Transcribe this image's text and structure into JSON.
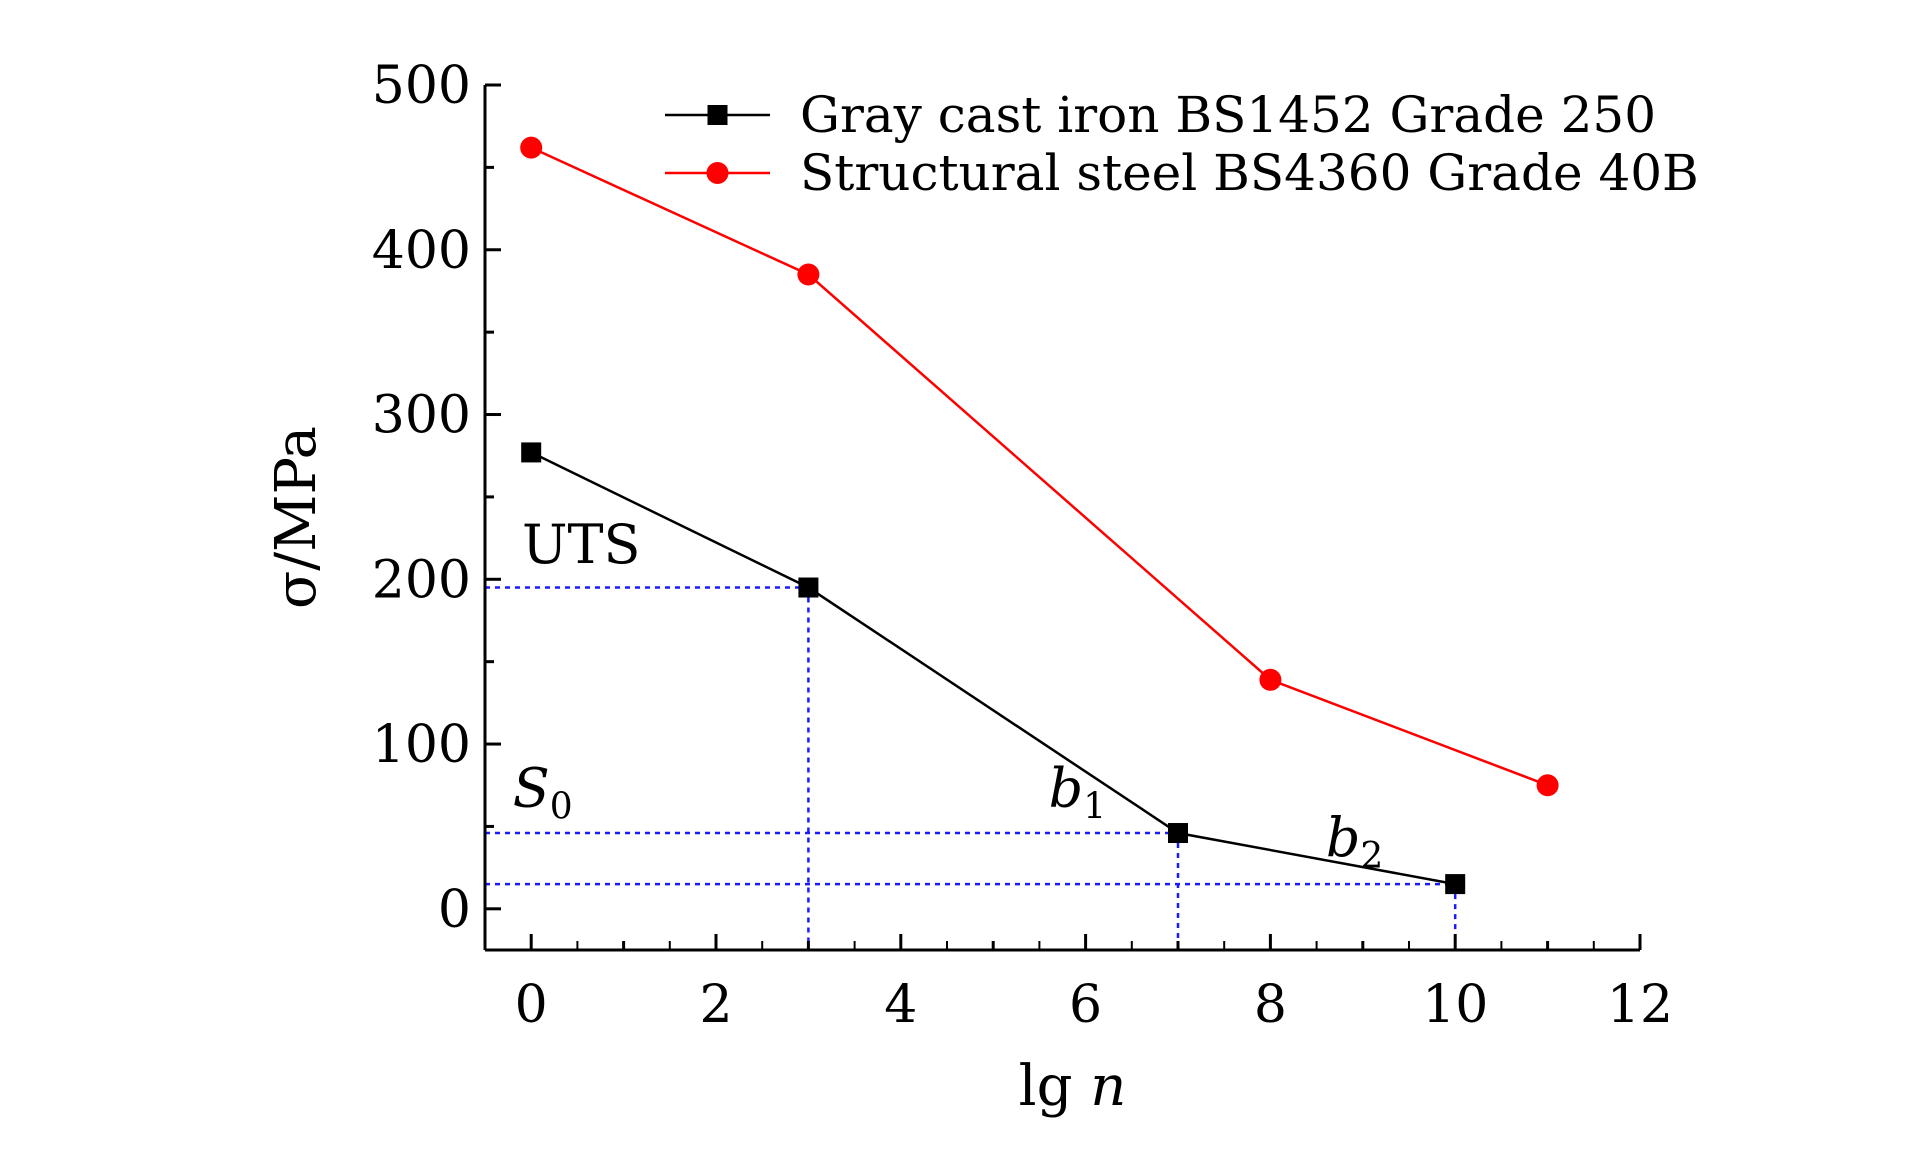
{
  "chart_data": {
    "type": "line",
    "xlabel": "lg n",
    "xlabel_parts": {
      "base": "lg ",
      "var": "n"
    },
    "ylabel": "σ/MPa",
    "xlim": [
      -0.5,
      12
    ],
    "ylim": [
      -25,
      500
    ],
    "xticks": [
      0,
      2,
      4,
      6,
      8,
      10,
      12
    ],
    "yticks": [
      0,
      100,
      200,
      300,
      400,
      500
    ],
    "grid": false,
    "legend_position": "top-right",
    "series": [
      {
        "name": "Gray cast iron BS1452 Grade 250",
        "color": "#000000",
        "marker": "square",
        "x": [
          0,
          3,
          7,
          10
        ],
        "y": [
          277,
          195,
          46,
          15
        ]
      },
      {
        "name": "Structural steel BS4360 Grade 40B",
        "color": "#ff0000",
        "marker": "circle",
        "x": [
          0,
          3,
          8,
          11
        ],
        "y": [
          462,
          385,
          139,
          75
        ]
      }
    ],
    "reference_lines": {
      "color": "#1a1aff",
      "horizontal": [
        {
          "y": 195,
          "x_end": 3
        },
        {
          "y": 46,
          "x_end": 7
        },
        {
          "y": 15,
          "x_end": 10
        }
      ],
      "vertical": [
        {
          "x": 3,
          "y_top": 195
        },
        {
          "x": 7,
          "y_top": 46
        },
        {
          "x": 10,
          "y_top": 15
        }
      ]
    },
    "annotations": [
      {
        "id": "uts",
        "text": "UTS",
        "sub": "",
        "italic": false,
        "x": -0.1,
        "y": 210
      },
      {
        "id": "s0",
        "text": "S",
        "sub": "0",
        "italic": true,
        "x": -0.2,
        "y": 62
      },
      {
        "id": "b1",
        "text": "b",
        "sub": "1",
        "italic": true,
        "x": 5.6,
        "y": 62
      },
      {
        "id": "b2",
        "text": "b",
        "sub": "2",
        "italic": true,
        "x": 8.6,
        "y": 32
      }
    ]
  }
}
